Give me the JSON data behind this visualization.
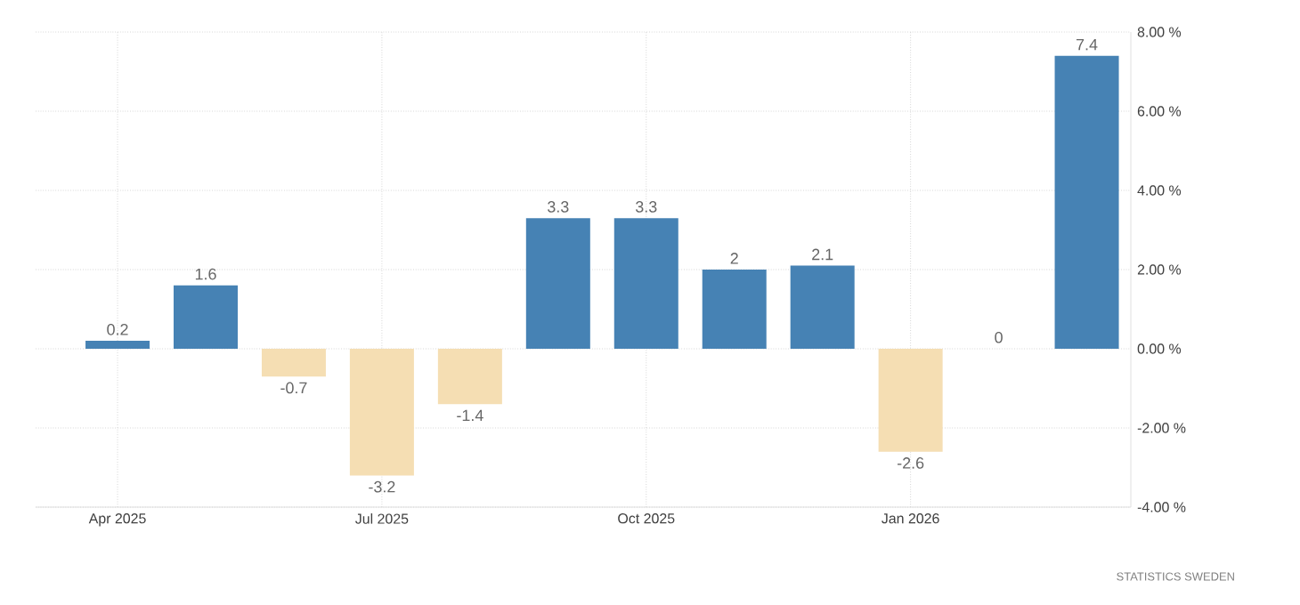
{
  "chart_data": {
    "type": "bar",
    "categories": [
      "Apr 2025",
      null,
      null,
      "Jul 2025",
      null,
      null,
      "Oct 2025",
      null,
      null,
      "Jan 2026",
      null,
      null
    ],
    "values": [
      0.2,
      1.6,
      -0.7,
      -3.2,
      -1.4,
      3.3,
      3.3,
      2,
      2.1,
      -2.6,
      0,
      7.4
    ],
    "colors": [
      "#4682b4",
      "#4682b4",
      "#f5deb3",
      "#f5deb3",
      "#f5deb3",
      "#4682b4",
      "#4682b4",
      "#4682b4",
      "#4682b4",
      "#f5deb3",
      "#4682b4",
      "#4682b4"
    ],
    "ylim": [
      -4,
      8
    ],
    "yticks": [
      {
        "value": -4,
        "label": "-4.00 %"
      },
      {
        "value": -2,
        "label": "-2.00 %"
      },
      {
        "value": 0,
        "label": "0.00 %"
      },
      {
        "value": 2,
        "label": "2.00 %"
      },
      {
        "value": 4,
        "label": "4.00 %"
      },
      {
        "value": 6,
        "label": "6.00 %"
      },
      {
        "value": 8,
        "label": "8.00 %"
      }
    ],
    "grid": true,
    "data_labels": true,
    "annotations": [
      "STATISTICS SWEDEN"
    ]
  }
}
